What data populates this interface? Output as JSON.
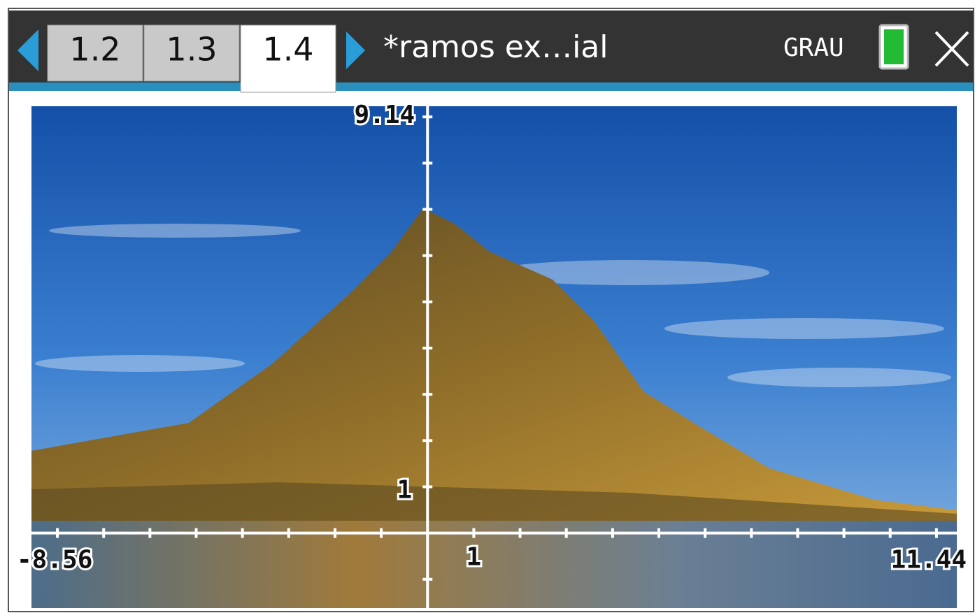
{
  "header": {
    "tabs": [
      "1.2",
      "1.3",
      "1.4"
    ],
    "active_tab": 2,
    "document_title": "*ramos ex…ial",
    "angle_mode": "GRAU"
  },
  "graph": {
    "xmin": -8.56,
    "xmax": 11.44,
    "ymax": 9.14,
    "x_unit": 1,
    "y_unit": 1
  }
}
